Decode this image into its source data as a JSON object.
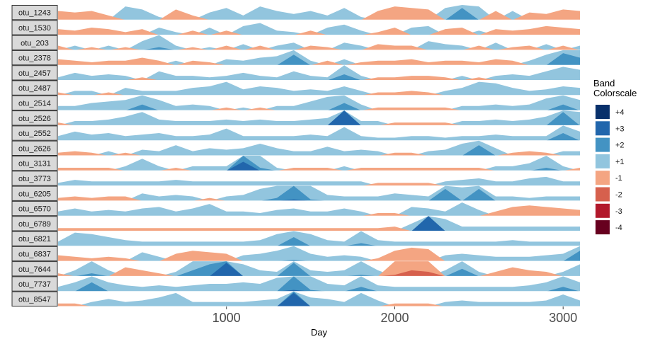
{
  "chart_data": {
    "type": "area",
    "subtype": "horizon",
    "xlabel": "Day",
    "xlim": [
      0,
      3100
    ],
    "xticks": [
      1000,
      2000,
      3000
    ],
    "band_scale": 1,
    "legend": {
      "title": [
        "Band",
        "Colorscale"
      ],
      "placement": "right",
      "items": [
        {
          "label": "+4",
          "color": "#08306b"
        },
        {
          "label": "+3",
          "color": "#2166ac"
        },
        {
          "label": "+2",
          "color": "#4393c3"
        },
        {
          "label": "+1",
          "color": "#92c5de"
        },
        {
          "label": "-1",
          "color": "#f4a582"
        },
        {
          "label": "-2",
          "color": "#d6604d"
        },
        {
          "label": "-3",
          "color": "#b2182b"
        },
        {
          "label": "-4",
          "color": "#67001f"
        }
      ]
    },
    "x": [
      0,
      100,
      200,
      300,
      400,
      500,
      600,
      700,
      800,
      900,
      1000,
      1100,
      1200,
      1300,
      1400,
      1500,
      1600,
      1700,
      1800,
      1900,
      2000,
      2100,
      2200,
      2300,
      2400,
      2500,
      2600,
      2700,
      2800,
      2900,
      3000,
      3100
    ],
    "series": [
      {
        "name": "otu_1243",
        "values": [
          -0.6,
          -0.5,
          -0.6,
          -0.3,
          0.9,
          0.7,
          0.2,
          -0.7,
          -0.3,
          0.5,
          0.8,
          0.3,
          0.9,
          0.6,
          0.4,
          0.6,
          0.3,
          0.8,
          0.2,
          -0.6,
          -0.9,
          -0.8,
          -0.7,
          0.8,
          1.8,
          0.9,
          -0.6,
          0.6,
          -0.5,
          -0.4,
          -0.7,
          -0.6
        ]
      },
      {
        "name": "otu_1530",
        "values": [
          -0.4,
          -0.3,
          -0.5,
          -0.4,
          -0.2,
          -0.4,
          0.5,
          0.2,
          -0.3,
          0.5,
          -0.3,
          0.6,
          0.8,
          0.3,
          0.2,
          -0.3,
          0.5,
          0.7,
          0.3,
          -0.2,
          -0.5,
          0.5,
          0.6,
          -0.4,
          -0.5,
          0.3,
          -0.4,
          -0.3,
          -0.4,
          -0.6,
          -0.5,
          -0.4
        ]
      },
      {
        "name": "otu_203",
        "values": [
          -0.3,
          0.3,
          -0.2,
          0.3,
          -0.2,
          0.6,
          1.2,
          0.3,
          -0.2,
          0.2,
          -0.3,
          0.4,
          -0.3,
          0.3,
          0.5,
          -0.3,
          -0.2,
          0.5,
          0.3,
          -0.4,
          -0.3,
          -0.3,
          0.6,
          0.4,
          0.3,
          -0.3,
          0.5,
          -0.2,
          -0.3,
          0.4,
          -0.3,
          0.3
        ]
      },
      {
        "name": "otu_2378",
        "values": [
          -0.4,
          -0.3,
          -0.2,
          -0.3,
          -0.3,
          -0.5,
          -0.3,
          0.3,
          -0.3,
          -0.2,
          0.4,
          0.3,
          0.5,
          0.6,
          1.7,
          0.3,
          -0.3,
          0.4,
          -0.2,
          -0.3,
          -0.3,
          -0.4,
          -0.2,
          -0.3,
          -0.3,
          -0.2,
          -0.4,
          -0.3,
          0.3,
          0.7,
          1.8,
          1.5
        ]
      },
      {
        "name": "otu_2457",
        "values": [
          0.2,
          0.5,
          0.3,
          0.4,
          0.3,
          -0.2,
          0.6,
          0.3,
          0.3,
          0.2,
          0.3,
          0.5,
          0.3,
          0.2,
          0.6,
          0.3,
          0.2,
          1.4,
          0.3,
          -0.2,
          -0.2,
          -0.3,
          -0.3,
          -0.2,
          0.3,
          -0.2,
          0.3,
          0.4,
          0.3,
          0.6,
          0.9,
          0.7
        ]
      },
      {
        "name": "otu_2487",
        "values": [
          -0.2,
          0.3,
          0.3,
          -0.2,
          0.5,
          0.3,
          0.3,
          0.3,
          0.5,
          0.6,
          0.9,
          0.4,
          0.6,
          0.5,
          0.3,
          0.4,
          0.3,
          0.6,
          0.3,
          -0.2,
          -0.2,
          -0.3,
          -0.2,
          0.3,
          0.5,
          0.9,
          0.8,
          0.5,
          0.3,
          0.4,
          0.6,
          0.5
        ]
      },
      {
        "name": "otu_2514",
        "values": [
          0.3,
          0.3,
          0.5,
          0.6,
          0.7,
          1.4,
          0.7,
          0.3,
          0.4,
          0.3,
          -0.2,
          0.2,
          -0.2,
          0.3,
          0.3,
          0.6,
          0.9,
          1.5,
          0.4,
          -0.2,
          -0.2,
          -0.2,
          -0.2,
          -0.2,
          0.3,
          0.3,
          0.4,
          0.3,
          0.4,
          0.8,
          1.4,
          0.7
        ]
      },
      {
        "name": "otu_2526",
        "values": [
          -0.2,
          0.3,
          0.3,
          0.4,
          0.6,
          0.9,
          0.4,
          0.3,
          0.3,
          0.3,
          0.4,
          0.3,
          0.4,
          0.3,
          0.3,
          0.4,
          0.5,
          3.0,
          0.3,
          0.3,
          -0.2,
          -0.2,
          -0.2,
          -0.2,
          0.3,
          0.3,
          0.4,
          0.3,
          0.4,
          0.6,
          1.9,
          0.9
        ]
      },
      {
        "name": "otu_2552",
        "values": [
          0.3,
          0.6,
          0.4,
          0.5,
          0.3,
          0.4,
          0.5,
          0.3,
          0.3,
          0.4,
          0.8,
          0.3,
          0.3,
          0.3,
          0.3,
          0.4,
          0.3,
          0.9,
          0.3,
          0.2,
          0.2,
          0.3,
          0.3,
          0.2,
          0.3,
          0.3,
          0.4,
          0.3,
          0.3,
          0.3,
          1.5,
          0.6
        ]
      },
      {
        "name": "otu_2626",
        "values": [
          -0.2,
          -0.3,
          -0.2,
          0.3,
          -0.2,
          0.4,
          0.3,
          0.7,
          0.3,
          0.5,
          0.4,
          0.5,
          0.8,
          0.5,
          0.3,
          0.3,
          0.6,
          0.3,
          0.4,
          0.3,
          -0.2,
          -0.2,
          0.3,
          0.4,
          0.8,
          1.7,
          0.5,
          -0.2,
          -0.3,
          -0.2,
          0.3,
          0.3
        ]
      },
      {
        "name": "otu_3131",
        "values": [
          -0.2,
          -0.2,
          -0.2,
          -0.2,
          0.3,
          0.8,
          0.3,
          -0.2,
          0.3,
          0.3,
          0.3,
          2.6,
          1.2,
          0.2,
          -0.2,
          -0.2,
          -0.2,
          0.3,
          -0.2,
          -0.2,
          -0.2,
          -0.2,
          -0.2,
          -0.2,
          -0.2,
          -0.2,
          0.3,
          0.3,
          0.5,
          1.2,
          0.3,
          -0.2
        ]
      },
      {
        "name": "otu_3773",
        "values": [
          0.2,
          0.4,
          0.3,
          0.3,
          0.3,
          0.3,
          0.3,
          0.4,
          0.3,
          0.3,
          0.3,
          0.3,
          0.3,
          0.3,
          0.3,
          0.3,
          0.3,
          0.3,
          0.3,
          -0.2,
          -0.2,
          -0.2,
          -0.2,
          0.3,
          0.4,
          0.5,
          0.3,
          0.3,
          0.5,
          0.6,
          0.3,
          0.3
        ]
      },
      {
        "name": "otu_6205",
        "values": [
          -0.2,
          -0.3,
          -0.2,
          -0.3,
          -0.3,
          0.5,
          0.3,
          0.4,
          0.3,
          -0.2,
          0.3,
          0.4,
          0.8,
          1.2,
          2.1,
          1.1,
          0.4,
          0.3,
          0.3,
          0.3,
          0.5,
          0.4,
          0.3,
          1.8,
          0.9,
          1.8,
          0.3,
          0.3,
          0.2,
          0.3,
          0.3,
          0.3
        ]
      },
      {
        "name": "otu_6570",
        "values": [
          0.3,
          0.5,
          0.3,
          0.4,
          0.3,
          0.5,
          0.6,
          0.3,
          0.5,
          0.8,
          0.3,
          0.3,
          0.2,
          0.4,
          0.5,
          0.3,
          0.3,
          0.5,
          0.3,
          -0.2,
          -0.2,
          0.6,
          0.5,
          0.3,
          0.9,
          0.4,
          -0.3,
          -0.6,
          -0.7,
          -0.6,
          -0.5,
          -0.4
        ]
      },
      {
        "name": "otu_6789",
        "values": [
          -0.2,
          -0.2,
          -0.2,
          -0.2,
          -0.2,
          -0.2,
          -0.2,
          -0.2,
          -0.2,
          -0.2,
          -0.2,
          -0.2,
          -0.2,
          -0.2,
          -0.2,
          -0.2,
          -0.2,
          -0.2,
          -0.2,
          -0.2,
          -0.3,
          0.5,
          3.0,
          0.8,
          0.3,
          0.3,
          0.3,
          0.3,
          0.3,
          0.3,
          0.3,
          0.3
        ]
      },
      {
        "name": "otu_6821",
        "values": [
          0.3,
          0.9,
          0.8,
          0.6,
          0.4,
          0.3,
          0.3,
          0.3,
          0.3,
          0.3,
          0.3,
          0.3,
          0.4,
          0.8,
          1.6,
          0.8,
          0.4,
          0.3,
          1.2,
          0.4,
          0.3,
          0.3,
          0.3,
          0.3,
          0.3,
          0.3,
          0.3,
          0.4,
          0.3,
          0.3,
          0.3,
          0.3
        ]
      },
      {
        "name": "otu_6837",
        "values": [
          -0.4,
          -0.3,
          -0.2,
          -0.3,
          -0.2,
          0.6,
          0.3,
          -0.5,
          -0.7,
          -0.6,
          -0.5,
          0.4,
          0.5,
          0.7,
          1.1,
          0.5,
          0.3,
          0.4,
          0.3,
          -0.2,
          -0.7,
          -0.9,
          -0.8,
          0.4,
          0.5,
          0.4,
          0.3,
          0.3,
          0.3,
          0.4,
          0.5,
          1.7
        ]
      },
      {
        "name": "otu_7644",
        "values": [
          -0.2,
          0.4,
          1.2,
          0.4,
          -0.6,
          -0.4,
          -0.2,
          0.3,
          1.4,
          1.8,
          2.9,
          0.8,
          0.4,
          0.3,
          1.9,
          0.4,
          0.3,
          0.4,
          1.1,
          0.4,
          -1.1,
          -1.4,
          -1.3,
          0.4,
          1.5,
          0.3,
          -0.3,
          -0.6,
          -0.4,
          -0.3,
          0.3,
          0.8
        ]
      },
      {
        "name": "otu_7737",
        "values": [
          0.3,
          0.6,
          1.6,
          0.6,
          0.4,
          0.3,
          0.4,
          0.3,
          0.4,
          0.5,
          0.5,
          0.6,
          0.5,
          0.9,
          2.1,
          1.1,
          0.5,
          0.4,
          1.3,
          0.4,
          0.3,
          0.3,
          0.3,
          0.3,
          0.3,
          0.3,
          0.3,
          0.3,
          0.4,
          0.6,
          1.3,
          0.6
        ]
      },
      {
        "name": "otu_8547",
        "values": [
          -0.2,
          -0.2,
          0.3,
          0.5,
          0.3,
          0.4,
          0.6,
          0.9,
          0.3,
          0.3,
          0.3,
          0.3,
          0.4,
          0.5,
          2.9,
          0.6,
          0.5,
          0.3,
          0.9,
          0.4,
          -0.2,
          -0.2,
          -0.2,
          0.3,
          0.4,
          0.3,
          0.3,
          0.3,
          0.3,
          0.4,
          0.8,
          0.4
        ]
      }
    ]
  }
}
